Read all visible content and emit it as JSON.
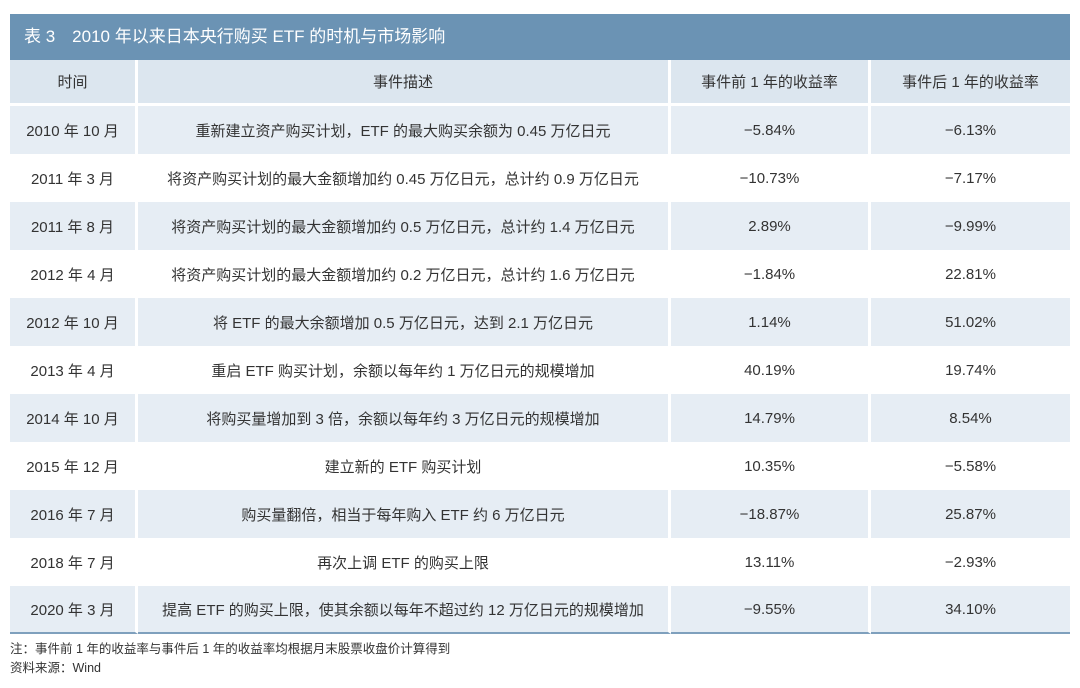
{
  "title": "表 3　2010 年以来日本央行购买 ETF 的时机与市场影响",
  "columns": [
    "时间",
    "事件描述",
    "事件前 1 年的收益率",
    "事件后 1 年的收益率"
  ],
  "rows": [
    {
      "time": "2010 年 10 月",
      "event": "重新建立资产购买计划，ETF 的最大购买余额为 0.45 万亿日元",
      "before": "−5.84%",
      "after": "−6.13%"
    },
    {
      "time": "2011 年 3 月",
      "event": "将资产购买计划的最大金额增加约 0.45 万亿日元，总计约 0.9 万亿日元",
      "before": "−10.73%",
      "after": "−7.17%"
    },
    {
      "time": "2011 年 8 月",
      "event": "将资产购买计划的最大金额增加约 0.5 万亿日元，总计约 1.4 万亿日元",
      "before": "2.89%",
      "after": "−9.99%"
    },
    {
      "time": "2012 年 4 月",
      "event": "将资产购买计划的最大金额增加约 0.2 万亿日元，总计约 1.6 万亿日元",
      "before": "−1.84%",
      "after": "22.81%"
    },
    {
      "time": "2012 年 10 月",
      "event": "将 ETF 的最大余额增加 0.5 万亿日元，达到 2.1 万亿日元",
      "before": "1.14%",
      "after": "51.02%"
    },
    {
      "time": "2013 年 4 月",
      "event": "重启 ETF 购买计划，余额以每年约 1 万亿日元的规模增加",
      "before": "40.19%",
      "after": "19.74%"
    },
    {
      "time": "2014 年 10 月",
      "event": "将购买量增加到 3 倍，余额以每年约 3 万亿日元的规模增加",
      "before": "14.79%",
      "after": "8.54%"
    },
    {
      "time": "2015 年 12 月",
      "event": "建立新的 ETF 购买计划",
      "before": "10.35%",
      "after": "−5.58%"
    },
    {
      "time": "2016 年 7 月",
      "event": "购买量翻倍，相当于每年购入 ETF 约 6 万亿日元",
      "before": "−18.87%",
      "after": "25.87%"
    },
    {
      "time": "2018 年 7 月",
      "event": "再次上调 ETF 的购买上限",
      "before": "13.11%",
      "after": "−2.93%"
    },
    {
      "time": "2020 年 3 月",
      "event": "提高 ETF 的购买上限，使其余额以每年不超过约 12 万亿日元的规模增加",
      "before": "−9.55%",
      "after": "34.10%"
    }
  ],
  "note": "注：事件前 1 年的收益率与事件后 1 年的收益率均根据月末股票收盘价计算得到",
  "source": "资料来源：Wind",
  "colors": {
    "title_bg": "#6b93b4",
    "header_bg": "#dce6ef",
    "row_alt_bg": "#e6edf4"
  }
}
